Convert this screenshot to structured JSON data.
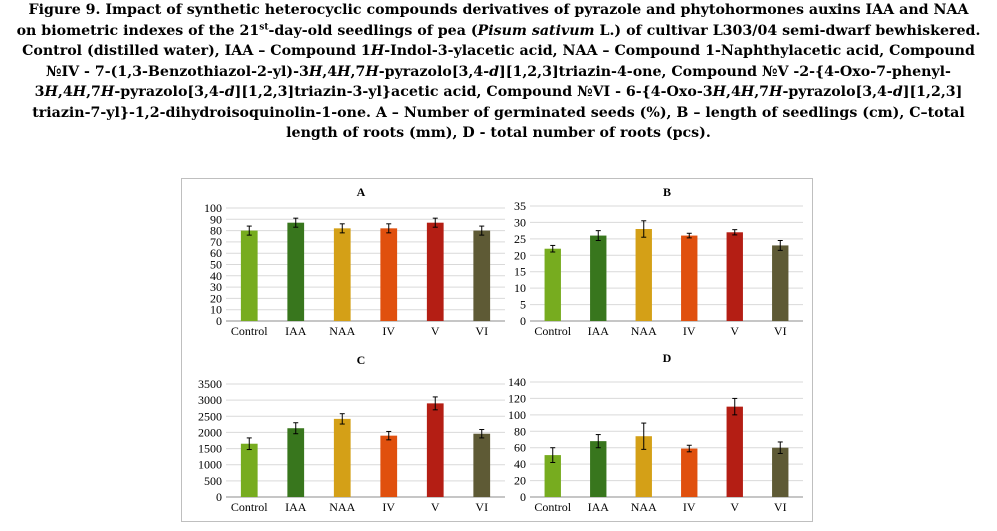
{
  "caption": {
    "line1": "Figure 9. Impact of synthetic heterocyclic compounds derivatives of pyrazole and phytohormones auxins IAA and NAA",
    "line2_a": "on biometric indexes of the 21",
    "line2_sup": "st",
    "line2_b": "-day-old seedlings of pea (",
    "line2_species": "Pisum sativum",
    "line2_c": " L.) of cultivar L303/04 semi-dwarf bewhiskered.",
    "line3_a": "Control (distilled water), IAA – Compound 1",
    "line3_h": "H",
    "line3_b": "-Indol-3-ylacetic acid, NAA – Compound 1-Naphthylacetic acid, Compound",
    "line4_a": "№IV - 7-(1,3-Benzothiazol-2-yl)-3",
    "line4_h1": "H",
    "line4_b": ",4",
    "line4_h2": "H",
    "line4_c": ",7",
    "line4_h3": "H",
    "line4_d": "-pyrazolo[3,4-",
    "line4_dd": "d",
    "line4_e": "][1,2,3]triazin-4-one, Compound №V -2-{4-Oxo-7-phenyl-",
    "line5_a": "3",
    "line5_h1": "H",
    "line5_b": ",4",
    "line5_h2": "H",
    "line5_c": ",7",
    "line5_h3": "H",
    "line5_d": "-pyrazolo[3,4-",
    "line5_dd": "d",
    "line5_e": "][1,2,3]triazin-3-yl}acetic acid, Compound №VI - 6-{4-Oxo-3",
    "line5_h4": "H",
    "line5_f": ",4",
    "line5_h5": "H",
    "line5_g": ",7",
    "line5_h6": "H",
    "line5_h": "-pyrazolo[3,4-",
    "line5_dd2": "d",
    "line5_i": "][1,2,3]",
    "line6": "triazin-7-yl}-1,2-dihydroisoquinolin-1-one. A – Number of germinated seeds (%), B – length of seedlings (cm), C–total",
    "line7": "length of roots (mm), D - total number of roots (pcs)."
  },
  "colors": [
    "#77ac1f",
    "#38761d",
    "#d4a017",
    "#e0500e",
    "#b41e14",
    "#5e5a35"
  ],
  "chart_data": [
    {
      "type": "bar",
      "title": "A",
      "categories": [
        "Control",
        "IAA",
        "NAA",
        "IV",
        "V",
        "VI"
      ],
      "values": [
        80,
        87,
        82,
        82,
        87,
        80
      ],
      "errors": [
        4,
        4,
        4,
        4,
        4,
        4
      ],
      "ylim": [
        0,
        100
      ],
      "yticks": [
        0,
        10,
        20,
        30,
        40,
        50,
        60,
        70,
        80,
        90,
        100
      ],
      "grid": true
    },
    {
      "type": "bar",
      "title": "B",
      "categories": [
        "Control",
        "IAA",
        "NAA",
        "IV",
        "V",
        "VI"
      ],
      "values": [
        22,
        26,
        28,
        26,
        27,
        23
      ],
      "errors": [
        1,
        1.5,
        2.5,
        0.7,
        0.8,
        1.5
      ],
      "ylim": [
        0,
        35
      ],
      "yticks": [
        0,
        5,
        10,
        15,
        20,
        25,
        30,
        35
      ],
      "grid": true
    },
    {
      "type": "bar",
      "title": "C",
      "categories": [
        "Control",
        "IAA",
        "NAA",
        "IV",
        "V",
        "VI"
      ],
      "values": [
        1650,
        2130,
        2420,
        1900,
        2900,
        1960
      ],
      "errors": [
        180,
        170,
        160,
        130,
        200,
        130
      ],
      "ylim": [
        0,
        3500
      ],
      "yticks": [
        0,
        500,
        1000,
        1500,
        2000,
        2500,
        3000,
        3500
      ],
      "grid": true
    },
    {
      "type": "bar",
      "title": "D",
      "categories": [
        "Control",
        "IAA",
        "NAA",
        "IV",
        "V",
        "VI"
      ],
      "values": [
        51,
        68,
        74,
        59,
        110,
        60
      ],
      "errors": [
        9,
        8,
        16,
        4,
        10,
        7
      ],
      "ylim": [
        0,
        140
      ],
      "yticks": [
        0,
        20,
        40,
        60,
        80,
        100,
        120,
        140
      ],
      "grid": true
    }
  ]
}
